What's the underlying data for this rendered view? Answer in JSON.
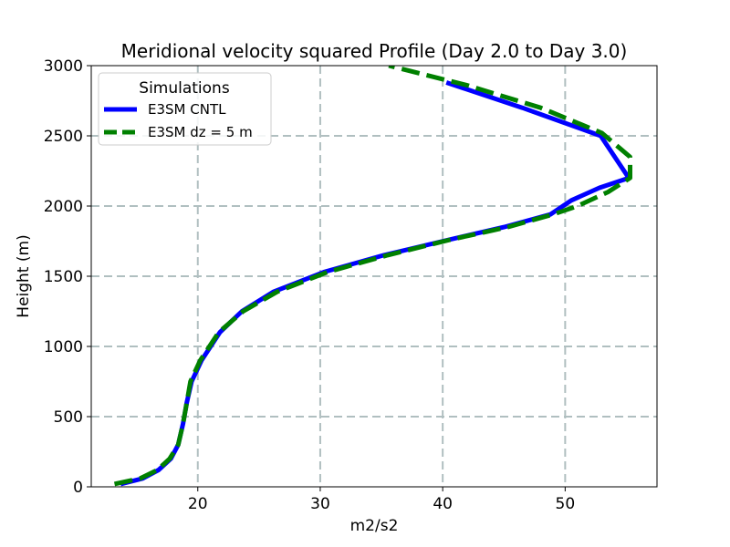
{
  "chart_data": {
    "type": "line",
    "title": "Meridional velocity squared Profile (Day 2.0 to Day 3.0)",
    "xlabel": "m2/s2",
    "ylabel": "Height (m)",
    "xlim": [
      11.3,
      57.5
    ],
    "ylim": [
      0,
      3000
    ],
    "xticks": [
      20,
      30,
      40,
      50
    ],
    "yticks": [
      0,
      500,
      1000,
      1500,
      2000,
      2500,
      3000
    ],
    "grid": true,
    "legend": {
      "title": "Simulations",
      "position": "top-left"
    },
    "series": [
      {
        "name": "E3SM CNTL",
        "color": "#0000ff",
        "style": "solid",
        "x": [
          13.7,
          15.5,
          16.8,
          17.8,
          18.4,
          18.8,
          19.1,
          19.5,
          20.3,
          21.8,
          23.6,
          26.2,
          30.3,
          35.2,
          40.5,
          45.0,
          48.8,
          50.5,
          52.8,
          55.2,
          52.9,
          46.5,
          40.3
        ],
        "y": [
          20,
          60,
          120,
          200,
          300,
          450,
          600,
          750,
          900,
          1100,
          1250,
          1390,
          1530,
          1650,
          1760,
          1850,
          1940,
          2040,
          2130,
          2200,
          2500,
          2700,
          2880
        ]
      },
      {
        "name": "E3SM dz = 5 m",
        "color": "#008000",
        "style": "dashed",
        "x": [
          13.2,
          15.3,
          16.7,
          17.7,
          18.4,
          18.8,
          19.1,
          19.4,
          20.2,
          21.7,
          23.7,
          26.5,
          30.6,
          35.5,
          40.6,
          45.3,
          49.0,
          51.0,
          53.5,
          55.3,
          55.3,
          53.0,
          48.0,
          42.0,
          35.6
        ],
        "y": [
          20,
          60,
          120,
          200,
          300,
          450,
          600,
          750,
          900,
          1100,
          1250,
          1390,
          1530,
          1650,
          1760,
          1850,
          1940,
          2000,
          2100,
          2200,
          2350,
          2520,
          2700,
          2860,
          3000
        ]
      }
    ]
  }
}
